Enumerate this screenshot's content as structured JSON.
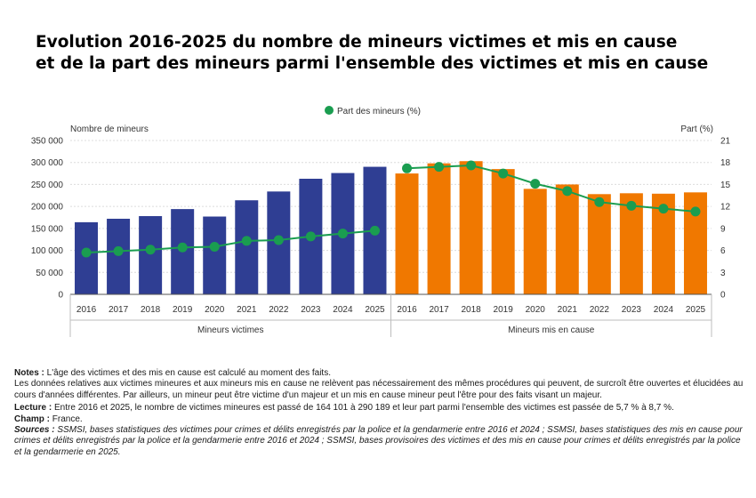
{
  "title": {
    "line1": "Evolution 2016-2025 du nombre de mineurs victimes et mis en cause",
    "line2": "et de la part des mineurs parmi l'ensemble des victimes et mis en cause"
  },
  "chart_data": {
    "type": "bar",
    "legend": {
      "label": "Part des mineurs (%)",
      "position": "top-center"
    },
    "ylabel_left": "Nombre de mineurs",
    "ylabel_right": "Part (%)",
    "ylim_left": [
      0,
      350000
    ],
    "ylim_right": [
      0,
      21
    ],
    "yticks_left": [
      "0",
      "50 000",
      "100 000",
      "150 000",
      "200 000",
      "250 000",
      "300 000",
      "350 000"
    ],
    "yticks_right": [
      "0",
      "3",
      "6",
      "9",
      "12",
      "15",
      "18",
      "21"
    ],
    "groups": [
      "Mineurs victimes",
      "Mineurs mis en cause"
    ],
    "categories": [
      "2016",
      "2017",
      "2018",
      "2019",
      "2020",
      "2021",
      "2022",
      "2023",
      "2024",
      "2025"
    ],
    "series": [
      {
        "group": "Mineurs victimes",
        "color": "#2f3e93",
        "values": [
          164101,
          172000,
          178000,
          194000,
          177000,
          214000,
          234000,
          263000,
          276000,
          290189
        ],
        "share_pct": [
          5.7,
          5.9,
          6.1,
          6.4,
          6.5,
          7.3,
          7.4,
          7.9,
          8.3,
          8.7
        ]
      },
      {
        "group": "Mineurs mis en cause",
        "color": "#f07800",
        "values": [
          275000,
          298000,
          303000,
          285000,
          240000,
          250000,
          228000,
          230000,
          229000,
          232000
        ],
        "share_pct": [
          17.2,
          17.4,
          17.6,
          16.5,
          15.1,
          14.1,
          12.6,
          12.1,
          11.7,
          11.3
        ]
      }
    ],
    "line_color": "#1a9d50",
    "grid": true
  },
  "notes": {
    "notes_label": "Notes :",
    "notes_line1": " L'âge des victimes et des mis en cause est calculé au moment des faits.",
    "notes_line2": "Les données relatives aux victimes mineures et aux mineurs mis en cause ne relèvent pas nécessairement des mêmes procédures qui peuvent, de surcroît être ouvertes et élucidées au cours d'années différentes. Par ailleurs, un mineur peut être victime d'un majeur et un mis en cause mineur peut l'être pour des faits visant un majeur.",
    "champ_label": "Champ :",
    "champ_text": " France.",
    "lecture_label": "Lecture :",
    "lecture_text": " Entre 2016 et 2025, le nombre de victimes mineures est passé de 164 101 à 290 189 et leur part parmi l'ensemble des victimes est passée de 5,7 % à 8,7 %.",
    "sources_label": "Sources :",
    "sources_text": " SSMSI, bases statistiques des victimes pour crimes et délits enregistrés par la police et la gendarmerie entre 2016 et 2024 ; SSMSI, bases statistiques des mis en cause pour crimes et délits enregistrés par la police et la gendarmerie entre 2016 et 2024 ; SSMSI, bases provisoires des victimes et des mis en cause pour crimes et délits enregistrés par la police et la gendarmerie en 2025."
  }
}
